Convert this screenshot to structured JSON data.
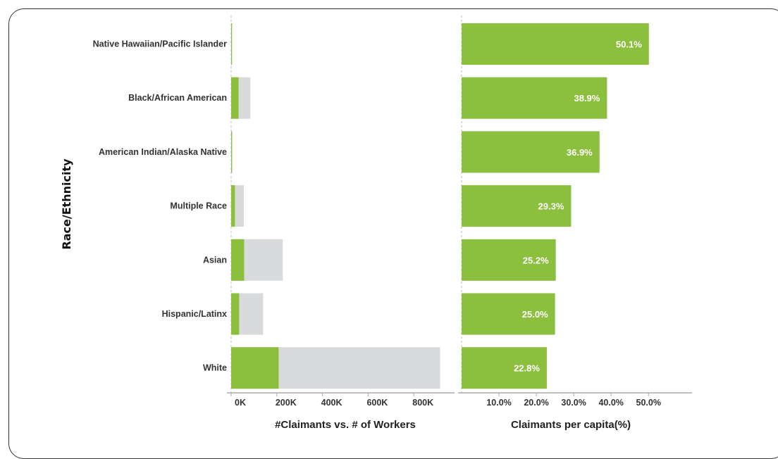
{
  "chart_data": [
    {
      "type": "bar",
      "orientation": "horizontal",
      "stacked_overlay": true,
      "ylabel": "Race/Ethnicity",
      "xlabel": "#Claimants vs. # of Workers",
      "categories": [
        "Native Hawaiian/Pacific Islander",
        "Black/African American",
        "American Indian/Alaska Native",
        "Multiple Race",
        "Asian",
        "Hispanic/Latinx",
        "White"
      ],
      "series": [
        {
          "name": "",
          "color": "#d9dadb",
          "values": [
            5000,
            84000,
            7000,
            56000,
            226000,
            140000,
            915000
          ]
        },
        {
          "name": "",
          "color": "#8dbf3f",
          "values": [
            2500,
            32500,
            2600,
            16500,
            57000,
            35000,
            208000
          ]
        }
      ],
      "xticks": [
        "0K",
        "200K",
        "400K",
        "600K",
        "800K"
      ],
      "xlim": [
        0,
        950000
      ]
    },
    {
      "type": "bar",
      "orientation": "horizontal",
      "xlabel": "Claimants per capita(%)",
      "categories": [
        "Native Hawaiian/Pacific Islander",
        "Black/African American",
        "American Indian/Alaska Native",
        "Multiple Race",
        "Asian",
        "Hispanic/Latinx",
        "White"
      ],
      "values": [
        50.1,
        38.9,
        36.9,
        29.3,
        25.2,
        25.0,
        22.8
      ],
      "data_labels": [
        "50.1%",
        "38.9%",
        "36.9%",
        "29.3%",
        "25.2%",
        "25.0%",
        "22.8%"
      ],
      "color": "#8dbf3f",
      "xticks": [
        "10.0%",
        "20.0%",
        "30.0%",
        "40.0%",
        "50.0%"
      ],
      "xlim": [
        0,
        62
      ]
    }
  ]
}
